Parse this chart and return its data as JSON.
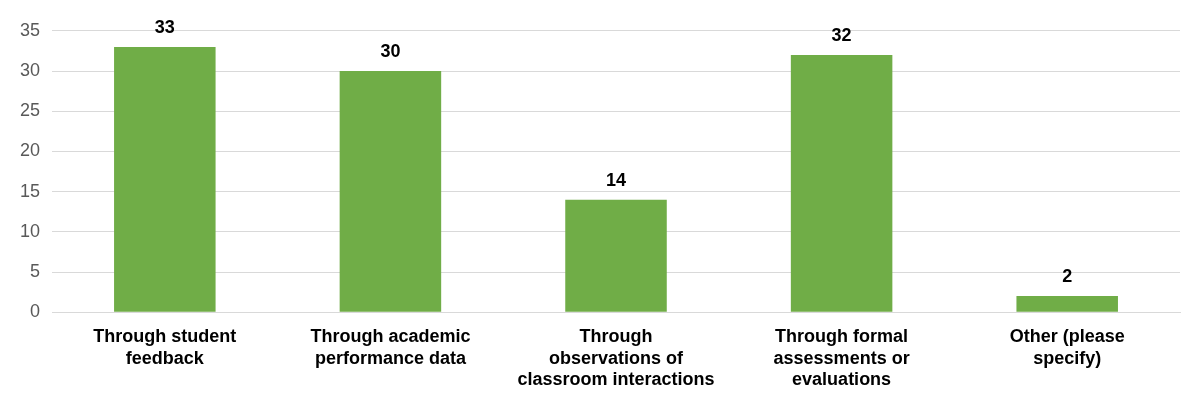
{
  "chart_data": {
    "type": "bar",
    "categories": [
      "Through student\nfeedback",
      "Through academic\nperformance data",
      "Through\nobservations of\nclassroom interactions",
      "Through formal\nassessments or\nevaluations",
      "Other (please\nspecify)"
    ],
    "values": [
      33,
      30,
      14,
      32,
      2
    ],
    "color": "#70ad47",
    "ylim": [
      0,
      35
    ],
    "yticks": [
      0,
      5,
      10,
      15,
      20,
      25,
      30,
      35
    ],
    "grid": "y",
    "legend": false,
    "data_labels": true
  }
}
